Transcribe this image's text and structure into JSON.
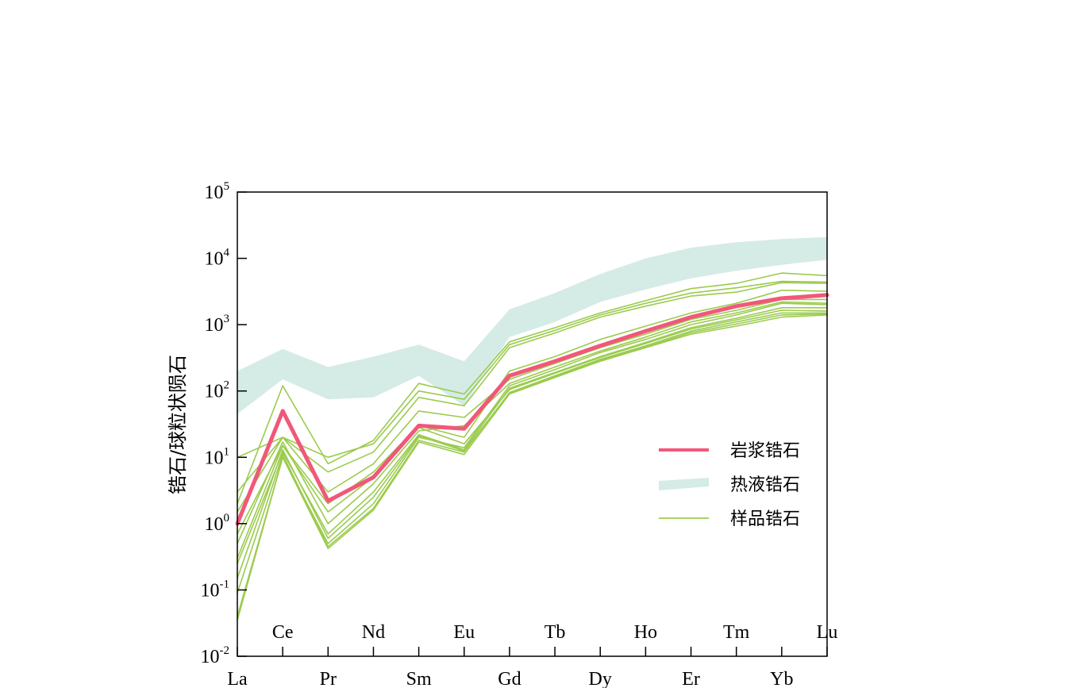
{
  "chart_data": {
    "type": "line",
    "yscale": "log",
    "ylabel": "锆石/球粒状陨石",
    "ylim": [
      0.01,
      100000
    ],
    "y_tick_labels": [
      {
        "base": "10",
        "exp": "-2"
      },
      {
        "base": "10",
        "exp": "-1"
      },
      {
        "base": "10",
        "exp": "0"
      },
      {
        "base": "10",
        "exp": "1"
      },
      {
        "base": "10",
        "exp": "2"
      },
      {
        "base": "10",
        "exp": "3"
      },
      {
        "base": "10",
        "exp": "4"
      },
      {
        "base": "10",
        "exp": "5"
      }
    ],
    "categories": [
      "La",
      "Ce",
      "Pr",
      "Nd",
      "Sm",
      "Eu",
      "Gd",
      "Tb",
      "Dy",
      "Ho",
      "Er",
      "Tm",
      "Yb",
      "Lu"
    ],
    "legend": {
      "position": "lower-right",
      "entries": [
        {
          "label": "岩浆锆石",
          "kind": "line-thick",
          "color": "#f0587a"
        },
        {
          "label": "热液锆石",
          "kind": "band",
          "color": "#d5ebe6"
        },
        {
          "label": "样品锆石",
          "kind": "line-thin",
          "color": "#9bcb4e"
        }
      ]
    },
    "hydrothermal_band": {
      "name": "热液锆石",
      "color": "#d5ebe6",
      "upper": [
        200,
        430,
        230,
        330,
        500,
        280,
        1700,
        3000,
        5800,
        10000,
        14500,
        17500,
        19500,
        21000
      ],
      "lower": [
        45,
        150,
        75,
        80,
        170,
        60,
        650,
        1100,
        2200,
        3400,
        5000,
        6500,
        8000,
        9500
      ]
    },
    "magmatic": {
      "name": "岩浆锆石",
      "color": "#f0587a",
      "values": [
        1.0,
        50,
        2.2,
        5,
        30,
        27,
        170,
        280,
        480,
        800,
        1300,
        1900,
        2500,
        2800
      ]
    },
    "sample_color": "#9bcb4e",
    "samples": [
      [
        2.0,
        120,
        8.0,
        18,
        130,
        90,
        550,
        900,
        1500,
        2300,
        3500,
        4200,
        6000,
        5500
      ],
      [
        10.0,
        20,
        10.0,
        16,
        100,
        75,
        500,
        820,
        1400,
        2100,
        3000,
        3600,
        4500,
        4400
      ],
      [
        3.0,
        20,
        6.0,
        12,
        80,
        60,
        450,
        750,
        1300,
        1900,
        2700,
        3100,
        4300,
        4200
      ],
      [
        0.3,
        15,
        2.0,
        6,
        30,
        20,
        200,
        330,
        600,
        950,
        1500,
        2100,
        3300,
        3200
      ],
      [
        1.5,
        20,
        3.0,
        8,
        50,
        40,
        150,
        260,
        450,
        720,
        1200,
        1650,
        2400,
        2400
      ],
      [
        0.04,
        10,
        0.5,
        2,
        20,
        14,
        120,
        210,
        380,
        600,
        1000,
        1400,
        2100,
        2000
      ],
      [
        0.5,
        17,
        1.0,
        4,
        25,
        30,
        130,
        230,
        400,
        650,
        1100,
        1500,
        2200,
        2100
      ],
      [
        0.25,
        12,
        0.7,
        3,
        22,
        13,
        110,
        190,
        330,
        540,
        900,
        1250,
        1800,
        1800
      ],
      [
        0.09,
        11,
        0.45,
        1.7,
        18,
        12,
        95,
        170,
        300,
        480,
        800,
        1100,
        1500,
        1500
      ],
      [
        0.035,
        10,
        0.42,
        1.6,
        17,
        11,
        90,
        160,
        280,
        450,
        720,
        950,
        1300,
        1400
      ],
      [
        0.7,
        15,
        1.5,
        5,
        28,
        16,
        105,
        185,
        320,
        520,
        860,
        1180,
        1650,
        1600
      ],
      [
        0.15,
        13,
        0.6,
        2.5,
        21,
        12.5,
        92,
        165,
        290,
        460,
        760,
        1020,
        1400,
        1450
      ]
    ]
  }
}
